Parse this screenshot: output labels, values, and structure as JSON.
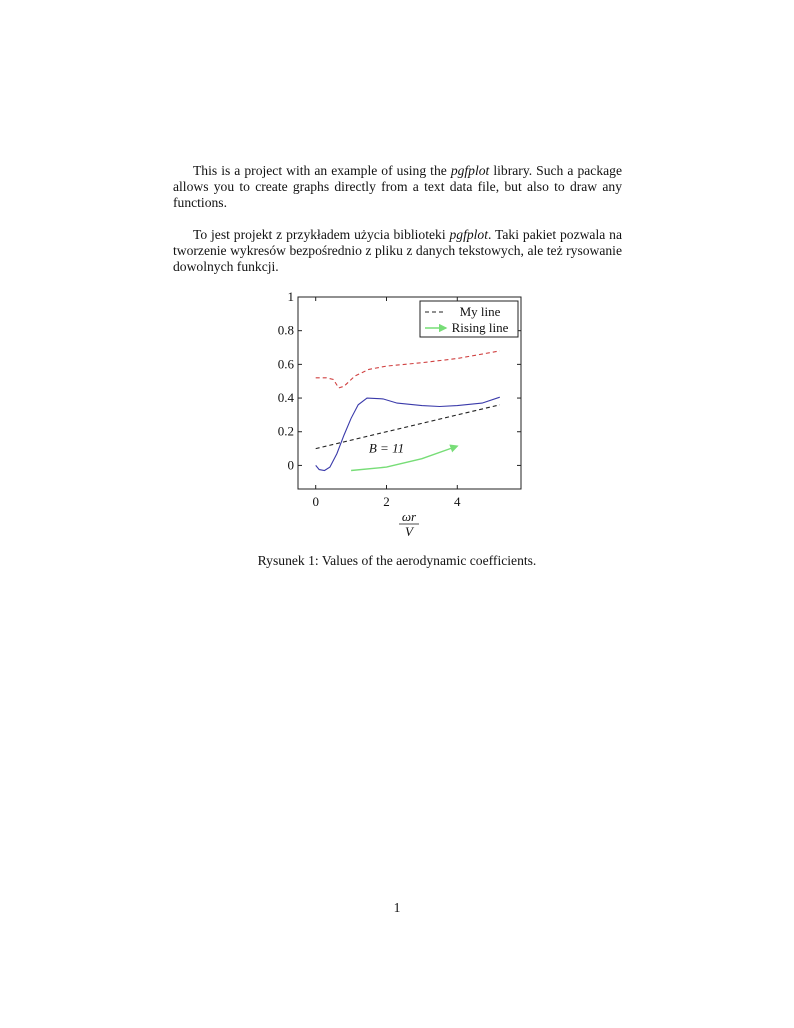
{
  "paragraphs": [
    {
      "before": "This is a project with an example of using the ",
      "em": "pgfplot",
      "after": " library. Such a package allows you to create graphs directly from a text data file, but also to draw any functions."
    },
    {
      "before": "To jest projekt z przykładem użycia biblioteki ",
      "em": "pgfplot",
      "after": ". Taki pakiet pozwala na tworzenie wykresów bezpośrednio z pliku z danych tekstowych, ale też rysowanie dowolnych funkcji."
    }
  ],
  "caption": "Rysunek 1: Values of the aerodynamic coefficients.",
  "page_number": "1",
  "chart_data": {
    "type": "line",
    "title": "",
    "xlabel_numerator": "ωr",
    "xlabel_denominator": "V",
    "ylabel": "",
    "xlim": [
      -0.5,
      5.8
    ],
    "ylim": [
      -0.14,
      1.0
    ],
    "xticks": [
      0,
      2,
      4
    ],
    "xtick_labels": [
      "0",
      "2",
      "4"
    ],
    "yticks": [
      0,
      0.2,
      0.4,
      0.6,
      0.8,
      1
    ],
    "ytick_labels": [
      "0",
      "0.2",
      "0.4",
      "0.6",
      "0.8",
      "1"
    ],
    "grid": false,
    "legend_position": "top-right",
    "annotation": {
      "text": "B = 11",
      "x": 2.0,
      "y": 0.1
    },
    "series": [
      {
        "style": "dashed",
        "color": "#d04040",
        "x": [
          0,
          0.3,
          0.5,
          0.65,
          0.8,
          1.1,
          1.5,
          2,
          3,
          4,
          5.2
        ],
        "y": [
          0.52,
          0.52,
          0.51,
          0.46,
          0.47,
          0.53,
          0.57,
          0.59,
          0.61,
          0.635,
          0.68
        ]
      },
      {
        "style": "solid",
        "color": "#3a3aaa",
        "x": [
          0,
          0.1,
          0.25,
          0.4,
          0.6,
          0.8,
          1.0,
          1.2,
          1.45,
          1.9,
          2.3,
          3,
          3.5,
          4,
          4.7,
          5.2
        ],
        "y": [
          0,
          -0.025,
          -0.03,
          -0.01,
          0.07,
          0.18,
          0.28,
          0.36,
          0.4,
          0.395,
          0.37,
          0.355,
          0.35,
          0.355,
          0.37,
          0.405
        ]
      },
      {
        "name": "My line",
        "style": "dashed",
        "color": "#222222",
        "x": [
          0,
          5.2
        ],
        "y": [
          0.1,
          0.36
        ]
      },
      {
        "name": "Rising line",
        "style": "solid-arrow",
        "color": "#77dd77",
        "x": [
          1,
          2,
          3,
          4
        ],
        "y": [
          -0.03,
          -0.01,
          0.04,
          0.115
        ]
      }
    ]
  }
}
